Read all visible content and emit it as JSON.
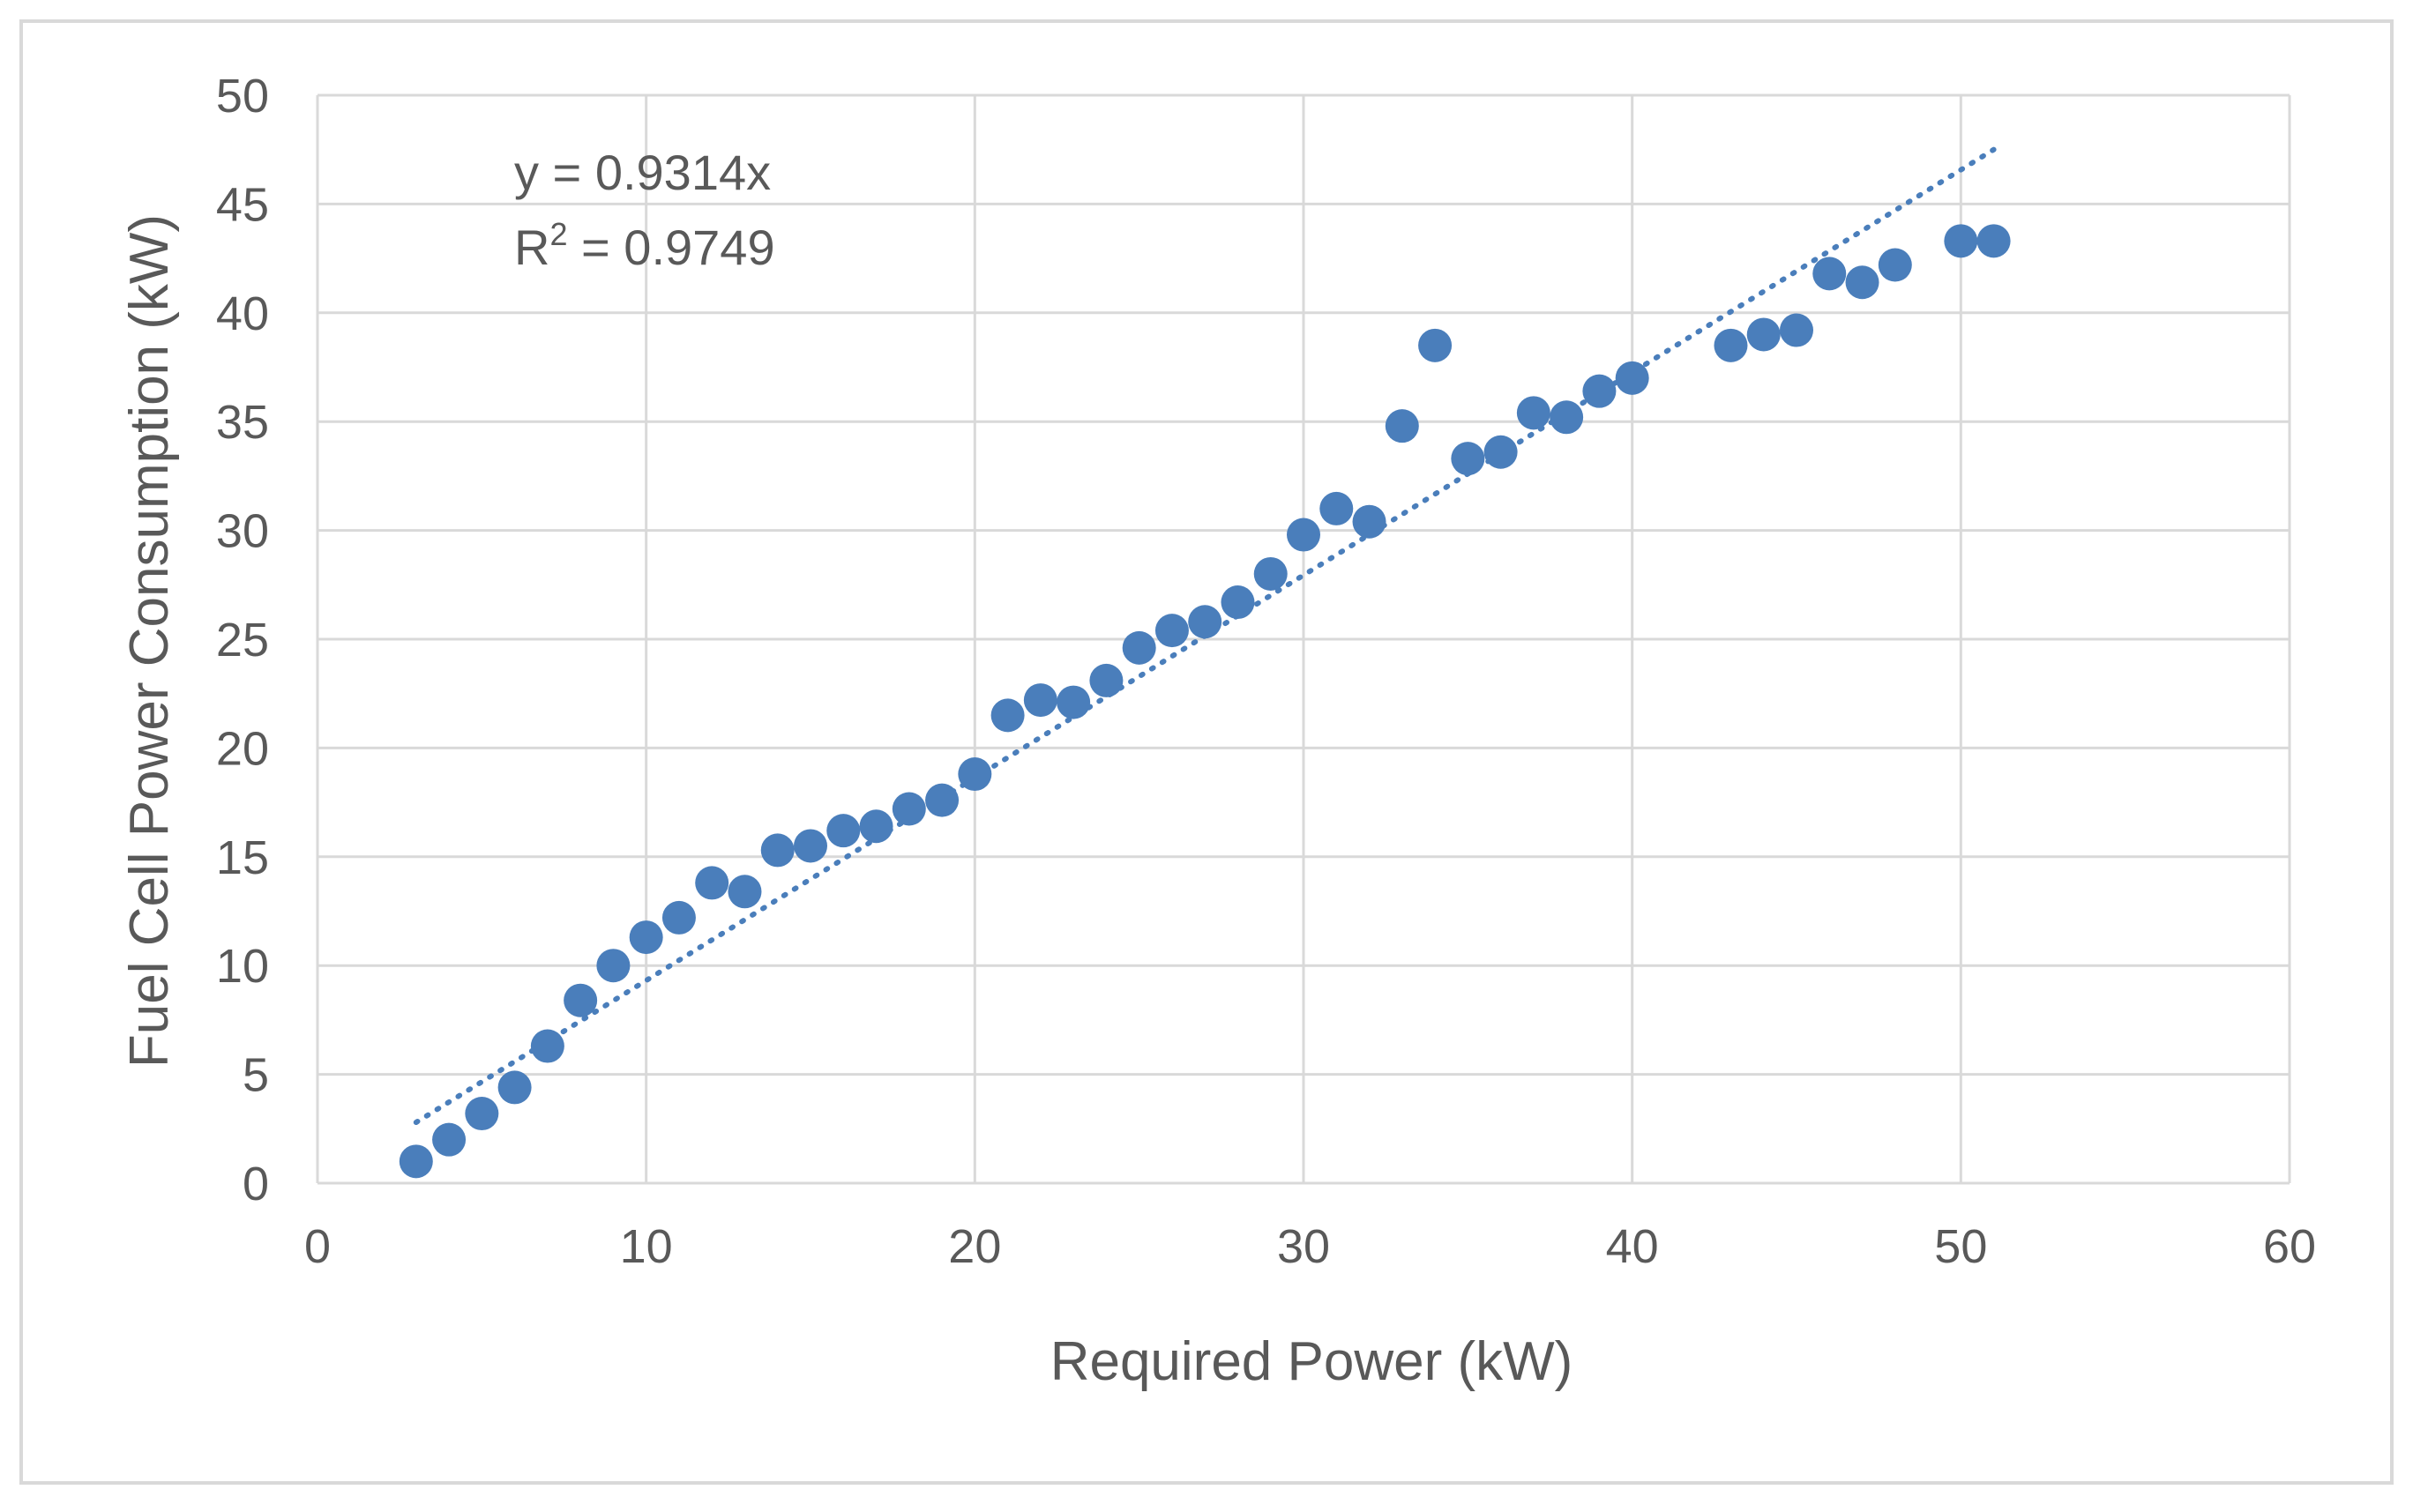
{
  "chart_data": {
    "type": "scatter",
    "xlabel": "Required Power (kW)",
    "ylabel": "Fuel Cell Power Consumption (kW)",
    "xlim": [
      0,
      60
    ],
    "ylim": [
      0,
      50
    ],
    "xticks": [
      0,
      10,
      20,
      30,
      40,
      50,
      60
    ],
    "yticks": [
      0,
      5,
      10,
      15,
      20,
      25,
      30,
      35,
      40,
      45,
      50
    ],
    "grid": true,
    "series": [
      {
        "name": "Fuel Cell Power Consumption",
        "color": "#4a7ebb",
        "x": [
          3,
          4,
          5,
          6,
          7,
          8,
          9,
          10,
          11,
          12,
          13,
          14,
          15,
          16,
          17,
          18,
          19,
          20,
          21,
          22,
          23,
          24,
          25,
          26,
          27,
          28,
          29,
          30,
          31,
          32,
          33,
          34,
          35,
          36,
          37,
          38,
          39,
          40,
          43,
          44,
          45,
          46,
          47,
          48,
          50,
          51
        ],
        "y": [
          1.0,
          2.0,
          3.2,
          4.4,
          6.3,
          8.4,
          10.0,
          11.3,
          12.2,
          13.8,
          13.4,
          15.3,
          15.5,
          16.2,
          16.4,
          17.2,
          17.6,
          18.8,
          21.5,
          22.2,
          22.1,
          23.1,
          24.6,
          25.4,
          25.8,
          26.7,
          28.0,
          29.8,
          31.0,
          30.4,
          34.8,
          38.5,
          33.3,
          33.6,
          35.4,
          35.2,
          36.4,
          37.0,
          38.5,
          39.0,
          39.2,
          41.8,
          41.4,
          42.2,
          43.3,
          43.3
        ]
      }
    ],
    "trendline": {
      "type": "linear-through-origin",
      "slope": 0.9314,
      "x_range": [
        3,
        51
      ],
      "color": "#4a7ebb",
      "equation": "y = 0.9314x",
      "r2_label": "R",
      "r2_sup": "2",
      "r2_value": " = 0.9749"
    }
  }
}
